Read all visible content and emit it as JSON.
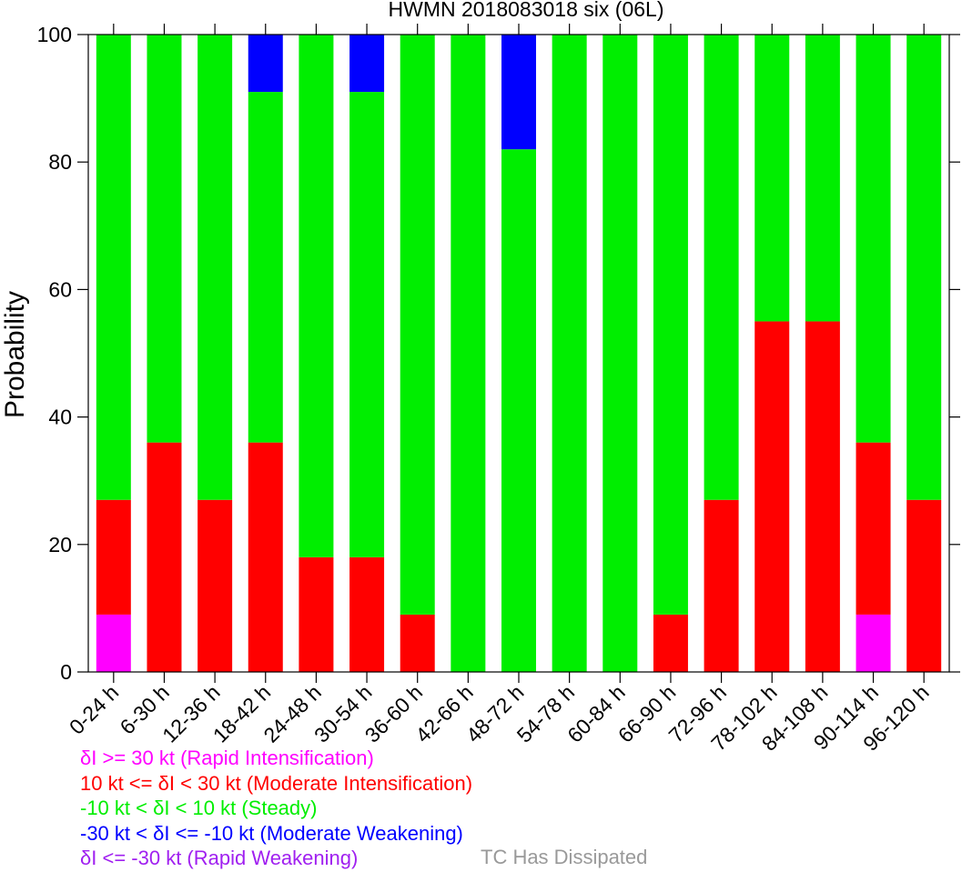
{
  "chart_data": {
    "type": "bar",
    "stacked": true,
    "title": "HWMN 2018083018 six (06L)",
    "xlabel": "",
    "ylabel": "Probability",
    "ylim": [
      0,
      100
    ],
    "yticks": [
      0,
      20,
      40,
      60,
      80,
      100
    ],
    "categories": [
      "0-24 h",
      "6-30 h",
      "12-36 h",
      "18-42 h",
      "24-48 h",
      "30-54 h",
      "36-60 h",
      "42-66 h",
      "48-72 h",
      "54-78 h",
      "60-84 h",
      "66-90 h",
      "72-96 h",
      "78-102 h",
      "84-108 h",
      "90-114 h",
      "96-120 h"
    ],
    "series": [
      {
        "name": "δI >= 30 kt (Rapid Intensification)",
        "color": "#ff00ff",
        "values": [
          9,
          0,
          0,
          0,
          0,
          0,
          0,
          0,
          0,
          0,
          0,
          0,
          0,
          0,
          0,
          9,
          0
        ]
      },
      {
        "name": "10 kt <= δI < 30 kt (Moderate Intensification)",
        "color": "#ff0000",
        "values": [
          18,
          36,
          27,
          36,
          18,
          18,
          9,
          0,
          0,
          0,
          0,
          9,
          27,
          55,
          55,
          27,
          27
        ]
      },
      {
        "name": "-10 kt < δI < 10 kt (Steady)",
        "color": "#00ee00",
        "values": [
          73,
          64,
          73,
          55,
          82,
          73,
          91,
          100,
          82,
          100,
          100,
          91,
          73,
          45,
          45,
          64,
          73
        ]
      },
      {
        "name": "-30 kt < δI <= -10 kt (Moderate Weakening)",
        "color": "#0000ff",
        "values": [
          0,
          0,
          0,
          9,
          0,
          9,
          0,
          0,
          18,
          0,
          0,
          0,
          0,
          0,
          0,
          0,
          0
        ]
      },
      {
        "name": "δI <= -30 kt (Rapid Weakening)",
        "color": "#a020f0",
        "values": [
          0,
          0,
          0,
          0,
          0,
          0,
          0,
          0,
          0,
          0,
          0,
          0,
          0,
          0,
          0,
          0,
          0
        ]
      }
    ],
    "extra_legend": {
      "label": "TC Has Dissipated",
      "color": "#999999"
    }
  }
}
